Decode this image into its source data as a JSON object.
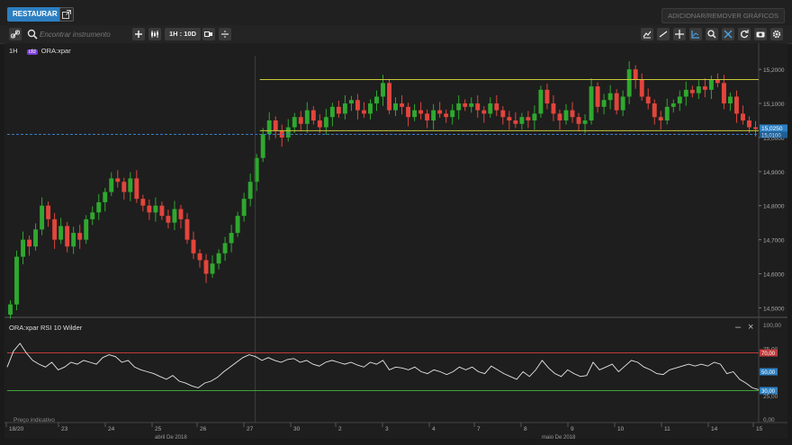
{
  "topbar": {
    "restore_label": "RESTAURAR",
    "add_remove_label": "ADICIONAR/REMOVER GRÁFICOS"
  },
  "toolbar": {
    "search_placeholder": "Encontrar instrumento",
    "timeframe_label": "1H : 10D",
    "left_icons": [
      "link-icon",
      "search-icon",
      "plus-icon",
      "candles-icon",
      "timeframe",
      "chart-type-icon",
      "line-style-icon"
    ],
    "right_icons": [
      "indicators-icon",
      "trendline-icon",
      "crosshair-icon",
      "fib-icon",
      "zoom-in-icon",
      "zoom-fit-icon",
      "refresh-icon",
      "camera-icon",
      "settings-icon"
    ]
  },
  "main_chart": {
    "interval": "1H",
    "instrument_badge": "cfd",
    "instrument": "ORA:xpar",
    "y_axis_labels": [
      "15,2000",
      "15,1000",
      "15,0000",
      "14,9000",
      "14,8000",
      "14,7000",
      "14,6000",
      "14,5000"
    ],
    "current_price_label": "15,0250",
    "current_price_label_2": "15,0100",
    "colors": {
      "up": "#2fa82f",
      "down": "#e2453c",
      "resistance": "#c9c93a",
      "price_line": "#3a7bc0",
      "badge": "#2d7fc1"
    }
  },
  "rsi_panel": {
    "title": "ORA:xpar  RSI 10 Wilder",
    "y_axis_labels": [
      "100,00",
      "75,00",
      "50,00",
      "25,00",
      "0,00"
    ],
    "level_labels": [
      "70,00",
      "50,00",
      "30,00"
    ],
    "minimize_label": "–",
    "close_label": "×",
    "footer_label": "Preço indicativo",
    "colors": {
      "overbought": "#c03a3a",
      "oversold": "#3aa33a",
      "line": "#e6e6e6"
    }
  },
  "x_axis": {
    "day_labels": [
      "18/20",
      "23",
      "24",
      "25",
      "26",
      "27",
      "30",
      "2",
      "3",
      "4",
      "7",
      "8",
      "9",
      "10",
      "11",
      "14",
      "15"
    ],
    "month_labels": [
      "abril De 2018",
      "maio De 2018"
    ]
  },
  "chart_data": {
    "type": "candlestick",
    "instrument": "ORA:xpar",
    "interval": "1H",
    "ylim": [
      14.48,
      15.24
    ],
    "resistance": 15.17,
    "support": 15.02,
    "last_price": 15.025,
    "closes": [
      14.51,
      14.65,
      14.7,
      14.68,
      14.73,
      14.8,
      14.76,
      14.7,
      14.74,
      14.68,
      14.72,
      14.7,
      14.76,
      14.78,
      14.81,
      14.84,
      14.88,
      14.87,
      14.84,
      14.88,
      14.82,
      14.8,
      14.78,
      14.8,
      14.77,
      14.75,
      14.79,
      14.76,
      14.7,
      14.66,
      14.64,
      14.6,
      14.63,
      14.66,
      14.69,
      14.72,
      14.77,
      14.82,
      14.87,
      14.94,
      15.01,
      15.05,
      15.02,
      15.0,
      15.03,
      15.06,
      15.04,
      15.08,
      15.05,
      15.03,
      15.06,
      15.09,
      15.07,
      15.1,
      15.11,
      15.08,
      15.07,
      15.1,
      15.12,
      15.16,
      15.08,
      15.1,
      15.09,
      15.06,
      15.08,
      15.07,
      15.05,
      15.08,
      15.07,
      15.06,
      15.08,
      15.1,
      15.09,
      15.1,
      15.08,
      15.07,
      15.1,
      15.08,
      15.06,
      15.05,
      15.04,
      15.06,
      15.05,
      15.07,
      15.14,
      15.1,
      15.07,
      15.05,
      15.08,
      15.06,
      15.04,
      15.05,
      15.15,
      15.09,
      15.11,
      15.13,
      15.08,
      15.12,
      15.2,
      15.17,
      15.12,
      15.1,
      15.06,
      15.05,
      15.09,
      15.1,
      15.12,
      15.14,
      15.13,
      15.15,
      15.14,
      15.17,
      15.16,
      15.1,
      15.12,
      15.07,
      15.05,
      15.03,
      15.025
    ],
    "rsi": {
      "name": "RSI 10 Wilder",
      "ylim": [
        0,
        100
      ],
      "levels": [
        70,
        50,
        30
      ],
      "values": [
        55,
        72,
        80,
        70,
        62,
        58,
        55,
        60,
        52,
        55,
        60,
        58,
        62,
        60,
        58,
        65,
        68,
        66,
        60,
        62,
        55,
        52,
        50,
        48,
        45,
        42,
        46,
        40,
        38,
        35,
        33,
        38,
        40,
        44,
        50,
        55,
        60,
        65,
        68,
        66,
        62,
        65,
        62,
        60,
        63,
        64,
        60,
        62,
        58,
        56,
        60,
        62,
        60,
        58,
        60,
        57,
        55,
        60,
        58,
        62,
        52,
        55,
        54,
        52,
        55,
        50,
        48,
        52,
        50,
        47,
        50,
        55,
        52,
        55,
        50,
        48,
        56,
        52,
        48,
        45,
        42,
        50,
        45,
        52,
        62,
        54,
        48,
        45,
        52,
        48,
        45,
        46,
        60,
        52,
        55,
        58,
        50,
        56,
        62,
        60,
        55,
        52,
        48,
        47,
        52,
        54,
        56,
        58,
        56,
        58,
        56,
        60,
        58,
        48,
        50,
        42,
        38,
        33,
        31
      ]
    }
  }
}
